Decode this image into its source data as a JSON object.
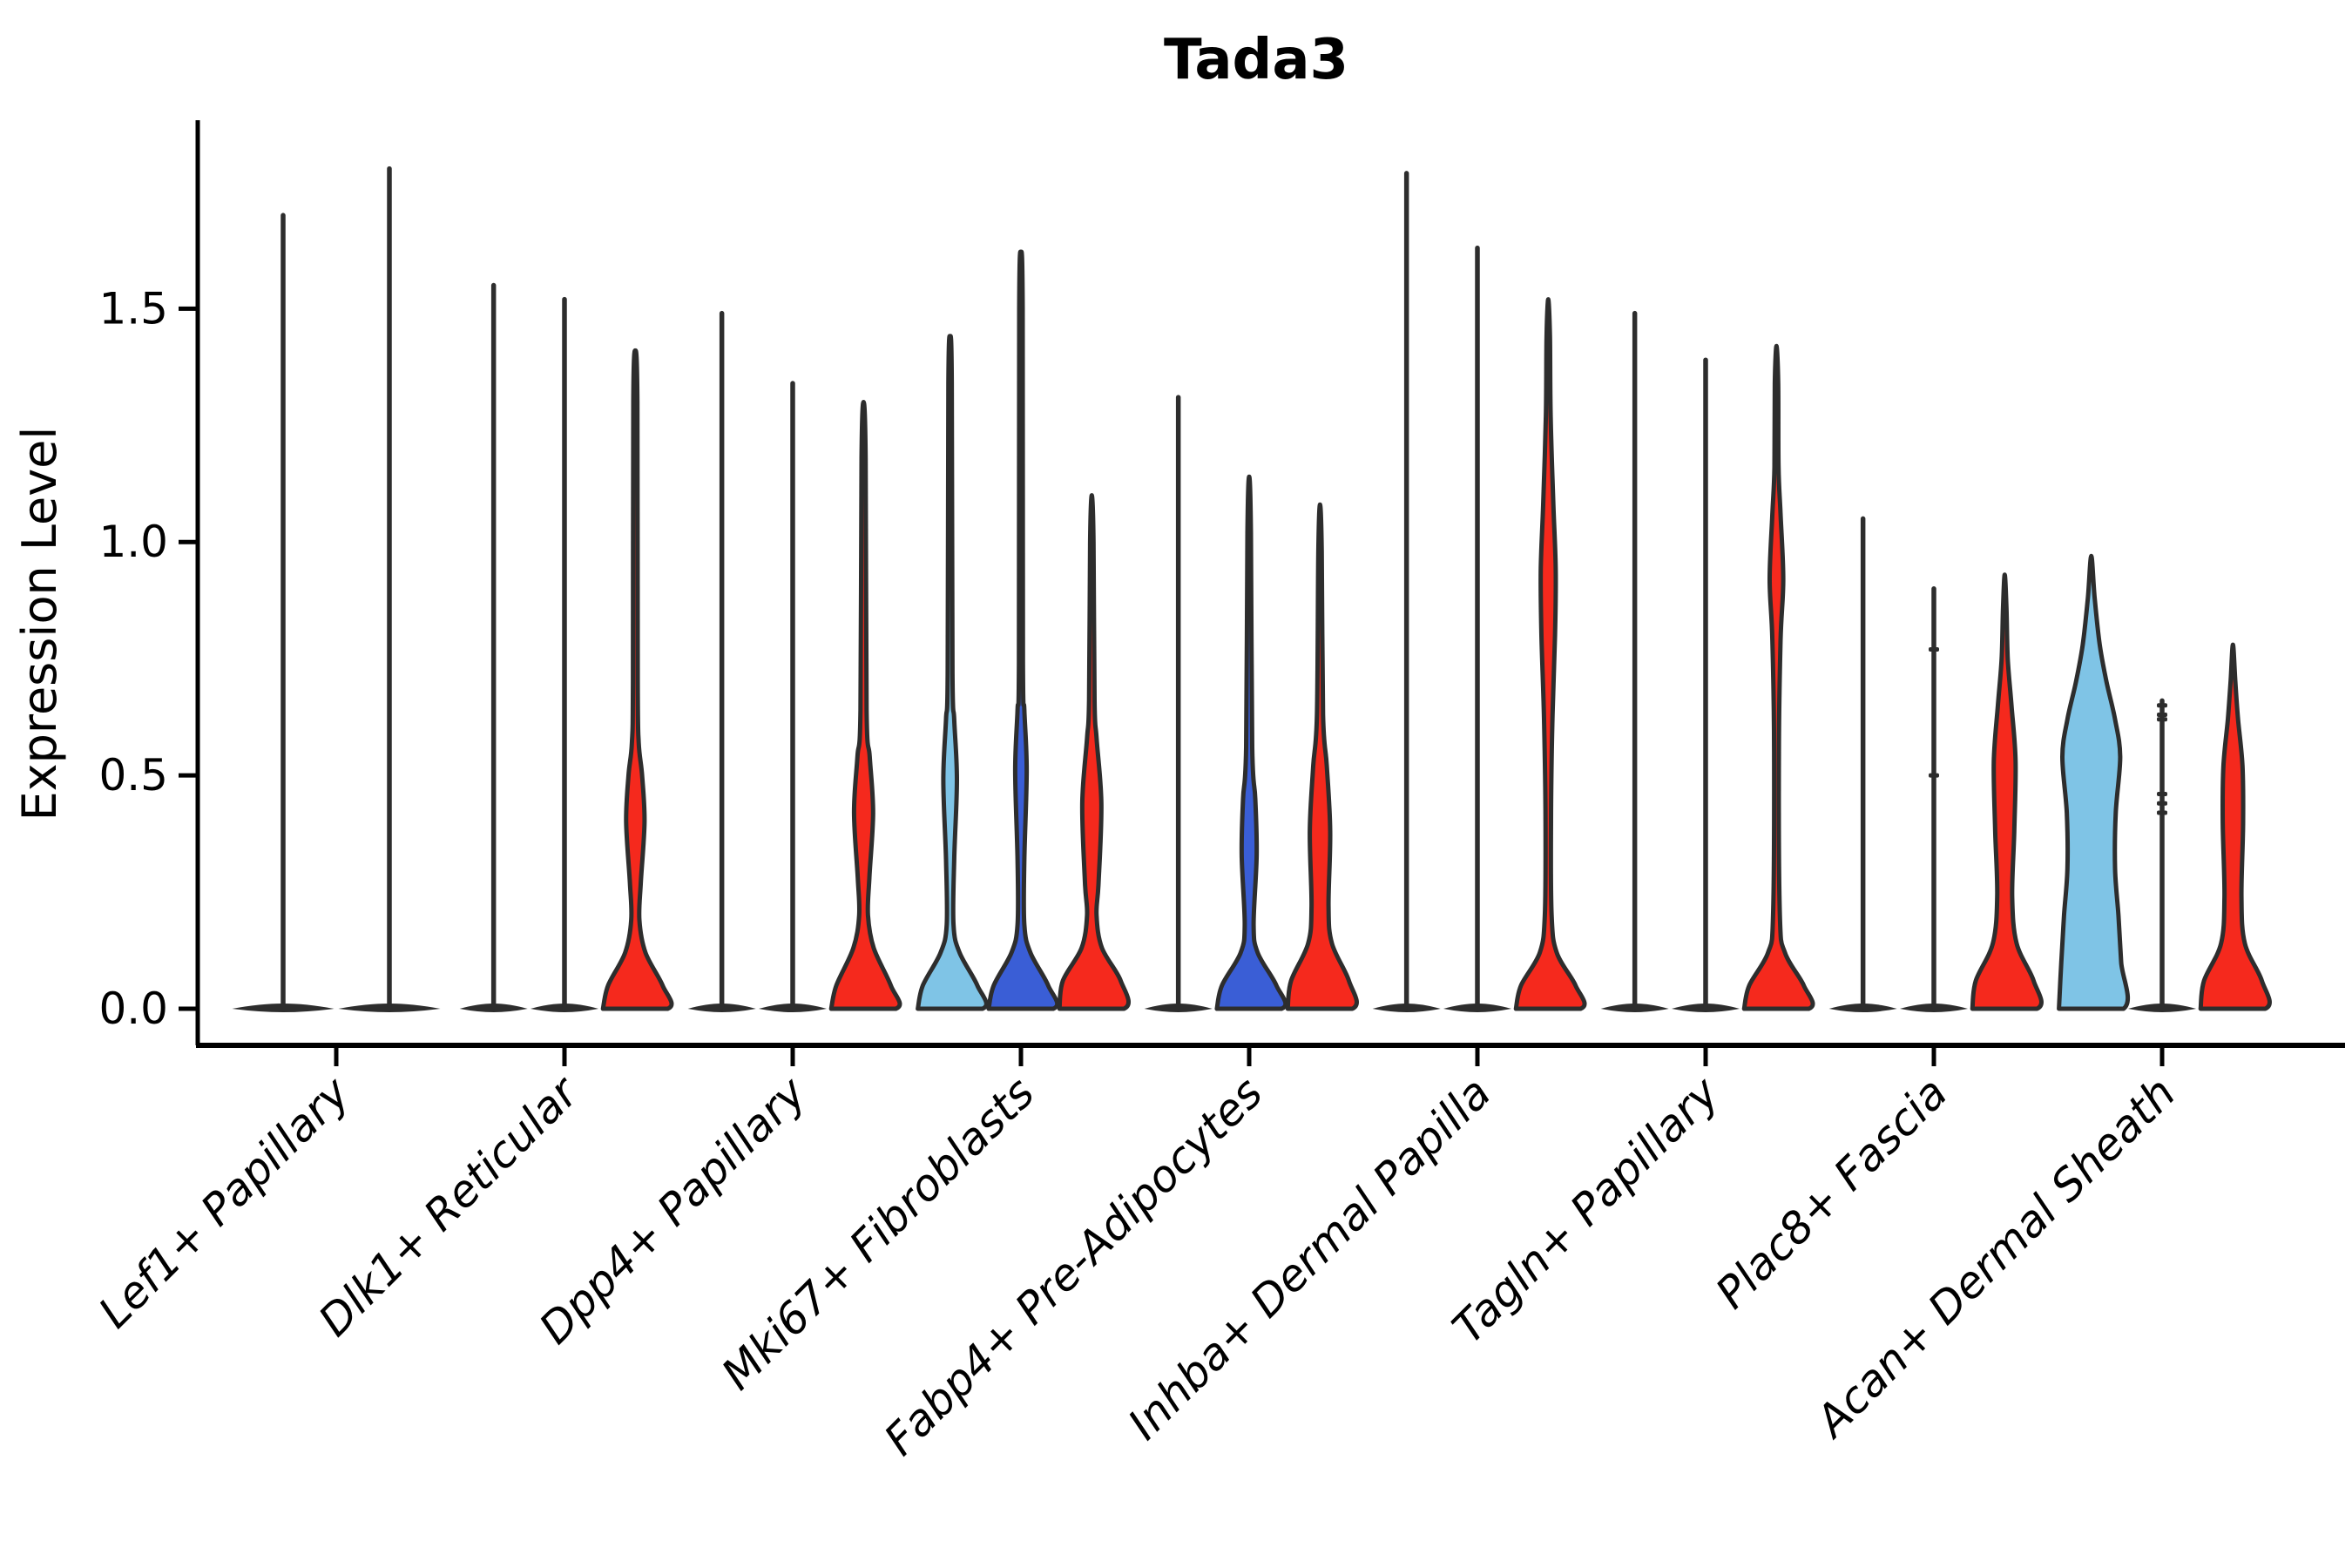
{
  "chart_data": {
    "type": "violin",
    "title": "Tada3",
    "xlabel": "",
    "ylabel": "Expression Level",
    "ylim": [
      0,
      1.9
    ],
    "yticks": [
      {
        "value": 0.0,
        "label": "0.0"
      },
      {
        "value": 0.5,
        "label": "0.5"
      },
      {
        "value": 1.0,
        "label": "1.0"
      },
      {
        "value": 1.5,
        "label": "1.5"
      }
    ],
    "grid": false,
    "legend": "none",
    "colors": {
      "red": "#f5291d",
      "blue": "#3a5ed6",
      "lightblue": "#7fc4e6",
      "ink": "#2d2d2d",
      "axis": "#000000"
    },
    "groups": [
      {
        "label": "Lef1+ Papillary",
        "violins": [
          {
            "kind": "spike",
            "color": "none",
            "max": 1.7
          },
          {
            "kind": "spike",
            "color": "none",
            "max": 1.8
          }
        ]
      },
      {
        "label": "Dlk1+ Reticular",
        "violins": [
          {
            "kind": "spike",
            "color": "none",
            "max": 1.55
          },
          {
            "kind": "spike",
            "color": "none",
            "max": 1.52
          },
          {
            "kind": "body",
            "color": "red",
            "max": 1.41,
            "profile": [
              [
                0,
                0.95
              ],
              [
                0.05,
                0.8
              ],
              [
                0.12,
                0.3
              ],
              [
                0.19,
                0.12
              ],
              [
                0.27,
                0.16
              ],
              [
                0.4,
                0.27
              ],
              [
                0.5,
                0.2
              ],
              [
                0.57,
                0.1
              ],
              [
                0.7,
                0.07
              ],
              [
                1.3,
                0.06
              ],
              [
                1.41,
                0
              ]
            ]
          }
        ]
      },
      {
        "label": "Dpp4+ Papillary",
        "violins": [
          {
            "kind": "spike",
            "color": "none",
            "max": 1.49
          },
          {
            "kind": "spike",
            "color": "none",
            "max": 1.34
          },
          {
            "kind": "body",
            "color": "red",
            "max": 1.3,
            "profile": [
              [
                0,
                0.95
              ],
              [
                0.05,
                0.8
              ],
              [
                0.13,
                0.3
              ],
              [
                0.2,
                0.13
              ],
              [
                0.28,
                0.17
              ],
              [
                0.42,
                0.28
              ],
              [
                0.54,
                0.18
              ],
              [
                0.64,
                0.09
              ],
              [
                1.18,
                0.06
              ],
              [
                1.3,
                0
              ]
            ]
          }
        ]
      },
      {
        "label": "Mki67+ Fibroblasts",
        "violins": [
          {
            "kind": "body",
            "color": "lightblue",
            "max": 1.44,
            "profile": [
              [
                0,
                0.95
              ],
              [
                0.05,
                0.8
              ],
              [
                0.12,
                0.28
              ],
              [
                0.18,
                0.1
              ],
              [
                0.32,
                0.12
              ],
              [
                0.49,
                0.2
              ],
              [
                0.62,
                0.12
              ],
              [
                0.72,
                0.07
              ],
              [
                1.34,
                0.05
              ],
              [
                1.44,
                0
              ]
            ]
          },
          {
            "kind": "body",
            "color": "blue",
            "max": 1.62,
            "profile": [
              [
                0,
                0.95
              ],
              [
                0.05,
                0.8
              ],
              [
                0.12,
                0.28
              ],
              [
                0.18,
                0.1
              ],
              [
                0.32,
                0.1
              ],
              [
                0.51,
                0.17
              ],
              [
                0.64,
                0.1
              ],
              [
                0.74,
                0.06
              ],
              [
                1.5,
                0.05
              ],
              [
                1.62,
                0
              ]
            ]
          },
          {
            "kind": "body",
            "color": "red",
            "max": 1.1,
            "profile": [
              [
                0,
                0.95
              ],
              [
                0.06,
                0.85
              ],
              [
                0.13,
                0.3
              ],
              [
                0.2,
                0.14
              ],
              [
                0.27,
                0.2
              ],
              [
                0.44,
                0.28
              ],
              [
                0.58,
                0.14
              ],
              [
                0.66,
                0.08
              ],
              [
                1.0,
                0.05
              ],
              [
                1.1,
                0
              ]
            ]
          }
        ]
      },
      {
        "label": "Fabp4+ Pre-Adipocytes",
        "violins": [
          {
            "kind": "spike",
            "color": "none",
            "max": 1.31
          },
          {
            "kind": "body",
            "color": "blue",
            "max": 1.14,
            "profile": [
              [
                0,
                0.95
              ],
              [
                0.05,
                0.8
              ],
              [
                0.12,
                0.25
              ],
              [
                0.18,
                0.13
              ],
              [
                0.33,
                0.22
              ],
              [
                0.45,
                0.18
              ],
              [
                0.56,
                0.09
              ],
              [
                1.02,
                0.05
              ],
              [
                1.14,
                0
              ]
            ]
          },
          {
            "kind": "body",
            "color": "red",
            "max": 1.08,
            "profile": [
              [
                0,
                0.95
              ],
              [
                0.06,
                0.85
              ],
              [
                0.14,
                0.35
              ],
              [
                0.22,
                0.25
              ],
              [
                0.38,
                0.3
              ],
              [
                0.52,
                0.2
              ],
              [
                0.63,
                0.09
              ],
              [
                0.98,
                0.05
              ],
              [
                1.08,
                0
              ]
            ]
          }
        ]
      },
      {
        "label": "Inhba+ Dermal Papilla",
        "violins": [
          {
            "kind": "spike",
            "color": "none",
            "max": 1.79
          },
          {
            "kind": "spike",
            "color": "none",
            "max": 1.63
          },
          {
            "kind": "body",
            "color": "red",
            "max": 1.52,
            "profile": [
              [
                0,
                0.95
              ],
              [
                0.05,
                0.8
              ],
              [
                0.12,
                0.25
              ],
              [
                0.2,
                0.1
              ],
              [
                0.4,
                0.08
              ],
              [
                0.61,
                0.12
              ],
              [
                0.8,
                0.2
              ],
              [
                0.94,
                0.22
              ],
              [
                1.08,
                0.15
              ],
              [
                1.27,
                0.07
              ],
              [
                1.44,
                0.05
              ],
              [
                1.52,
                0
              ]
            ]
          }
        ]
      },
      {
        "label": "Tagln+ Papillary",
        "violins": [
          {
            "kind": "spike",
            "color": "none",
            "max": 1.49
          },
          {
            "kind": "spike",
            "color": "none",
            "max": 1.39
          },
          {
            "kind": "body",
            "color": "red",
            "max": 1.42,
            "profile": [
              [
                0,
                0.95
              ],
              [
                0.05,
                0.8
              ],
              [
                0.12,
                0.25
              ],
              [
                0.2,
                0.1
              ],
              [
                0.55,
                0.07
              ],
              [
                0.79,
                0.12
              ],
              [
                0.92,
                0.2
              ],
              [
                1.06,
                0.12
              ],
              [
                1.16,
                0.06
              ],
              [
                1.34,
                0.05
              ],
              [
                1.42,
                0
              ]
            ]
          }
        ]
      },
      {
        "label": "Plac8+ Fascia",
        "violins": [
          {
            "kind": "spike",
            "color": "none",
            "max": 1.05
          },
          {
            "kind": "spike",
            "color": "none",
            "max": 0.9,
            "dots": [
              0.5,
              0.77
            ]
          },
          {
            "kind": "body",
            "color": "red",
            "max": 0.93,
            "profile": [
              [
                0,
                0.95
              ],
              [
                0.06,
                0.85
              ],
              [
                0.14,
                0.35
              ],
              [
                0.24,
                0.22
              ],
              [
                0.38,
                0.28
              ],
              [
                0.53,
                0.32
              ],
              [
                0.65,
                0.2
              ],
              [
                0.75,
                0.09
              ],
              [
                0.86,
                0.05
              ],
              [
                0.93,
                0
              ]
            ]
          }
        ]
      },
      {
        "label": "Acan+ Dermal Sheath",
        "violins": [
          {
            "kind": "body",
            "color": "lightblue",
            "max": 0.97,
            "profile": [
              [
                0,
                0.95
              ],
              [
                0.1,
                0.88
              ],
              [
                0.2,
                0.8
              ],
              [
                0.3,
                0.7
              ],
              [
                0.42,
                0.72
              ],
              [
                0.54,
                0.85
              ],
              [
                0.62,
                0.7
              ],
              [
                0.7,
                0.45
              ],
              [
                0.78,
                0.25
              ],
              [
                0.88,
                0.1
              ],
              [
                0.97,
                0
              ]
            ]
          },
          {
            "kind": "spike",
            "color": "none",
            "max": 0.66,
            "dots": [
              0.42,
              0.44,
              0.46,
              0.62,
              0.63,
              0.65
            ]
          },
          {
            "kind": "body",
            "color": "red",
            "max": 0.78,
            "profile": [
              [
                0,
                0.95
              ],
              [
                0.06,
                0.85
              ],
              [
                0.14,
                0.35
              ],
              [
                0.24,
                0.25
              ],
              [
                0.4,
                0.3
              ],
              [
                0.52,
                0.28
              ],
              [
                0.62,
                0.15
              ],
              [
                0.7,
                0.07
              ],
              [
                0.78,
                0
              ]
            ]
          }
        ]
      }
    ]
  }
}
